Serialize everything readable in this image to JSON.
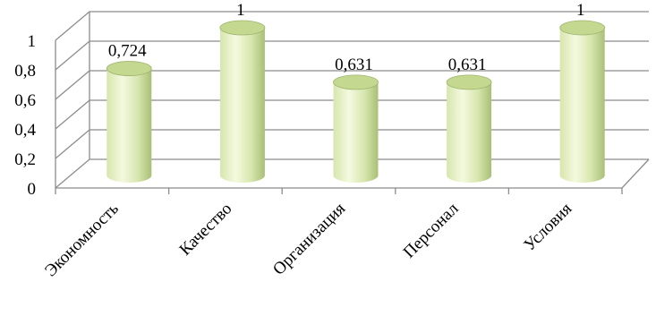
{
  "chart_data": {
    "type": "bar",
    "style": "3d-cylinder",
    "categories": [
      "Экономность",
      "Качество",
      "Организация",
      "Персонал",
      "Условия"
    ],
    "values": [
      0.724,
      1,
      0.631,
      0.631,
      1
    ],
    "data_labels": [
      "0,724",
      "1",
      "0,631",
      "0,631",
      "1"
    ],
    "ylim": [
      0,
      1
    ],
    "y_ticks": [
      0,
      0.2,
      0.4,
      0.6,
      0.8,
      1
    ],
    "y_tick_labels": [
      "0",
      "0,2",
      "0,4",
      "0,6",
      "0,8",
      "1"
    ],
    "grid": true,
    "legend": "none",
    "title": "",
    "xlabel": "",
    "ylabel": "",
    "colors": {
      "bar_light": "#f4f9df",
      "bar_mid": "#d7e6ad",
      "bar_dark": "#a9bf78",
      "bar_top": "#c4d890",
      "bar_top_edge": "#9fb46e",
      "grid": "#8c8c8c"
    }
  }
}
